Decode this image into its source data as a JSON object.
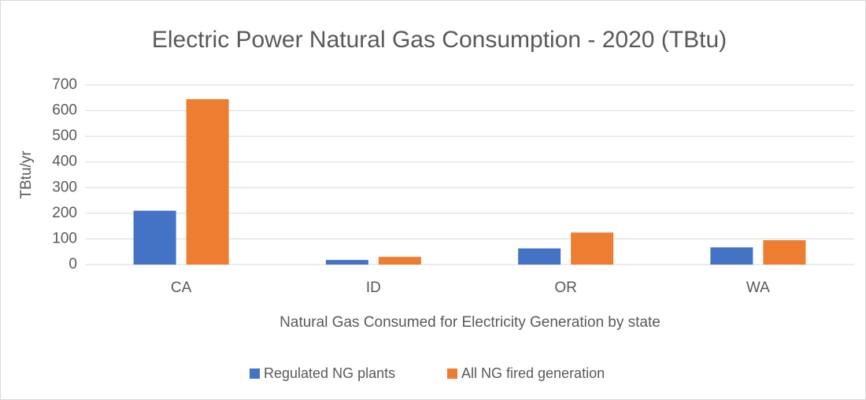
{
  "chart_data": {
    "type": "bar",
    "title": "Electric Power Natural Gas Consumption - 2020 (TBtu)",
    "x_label": "Natural Gas Consumed for Electricity Generation by state",
    "y_label": "TBtu/yr",
    "categories": [
      "CA",
      "ID",
      "OR",
      "WA"
    ],
    "series": [
      {
        "name": "Regulated NG plants",
        "color": "#4472c4",
        "values": [
          210,
          18,
          63,
          67
        ]
      },
      {
        "name": "All NG fired generation",
        "color": "#ed7d31",
        "values": [
          645,
          30,
          125,
          95
        ]
      }
    ],
    "ylim": [
      0,
      700
    ],
    "yticks": [
      0,
      100,
      200,
      300,
      400,
      500,
      600,
      700
    ],
    "grid": true,
    "legend": "bottom"
  }
}
